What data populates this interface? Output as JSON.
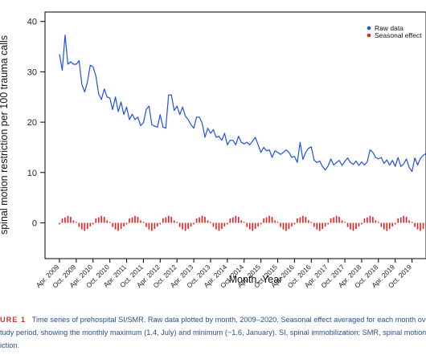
{
  "chart_data": {
    "type": "line",
    "title": "",
    "xlabel": "Month. Year",
    "ylabel": "spinal motion restriction per 100 trauma calls",
    "ylim": [
      -5,
      40
    ],
    "yticks": [
      0,
      10,
      20,
      30,
      40
    ],
    "x_tick_labels": [
      "Apr. 2009",
      "Oct. 2009",
      "Apr. 2010",
      "Oct. 2010",
      "Apr. 2011",
      "Oct. 2011",
      "Apr. 2012",
      "Oct. 2012",
      "Apr. 2013",
      "Oct. 2013",
      "Apr. 2014",
      "Oct. 2014",
      "Apr. 2015",
      "Oct. 2015",
      "Apr. 2016",
      "Oct. 2016",
      "Apr. 2017",
      "Oct. 2017",
      "Apr. 2018",
      "Oct. 2018",
      "Apr. 2019",
      "Oct. 2019"
    ],
    "start_month": "2009-04",
    "legend": {
      "position": "top-right"
    },
    "series": [
      {
        "name": "Raw data",
        "type": "line",
        "color": "#1f4fe6",
        "values": [
          33.5,
          30.3,
          37.3,
          31.5,
          32.0,
          31.5,
          31.5,
          32.2,
          27.5,
          26.0,
          28.0,
          31.3,
          31.0,
          29.2,
          25.6,
          24.5,
          26.6,
          25.0,
          24.8,
          22.5,
          25.0,
          22.1,
          24.0,
          21.5,
          23.0,
          20.5,
          21.6,
          20.5,
          21.0,
          19.3,
          19.9,
          22.5,
          23.2,
          19.5,
          19.2,
          19.0,
          21.5,
          19.0,
          18.8,
          25.4,
          25.4,
          22.3,
          23.2,
          21.5,
          23.0,
          21.2,
          20.5,
          19.5,
          18.8,
          21.0,
          21.0,
          19.8,
          17.0,
          18.8,
          17.8,
          18.5,
          17.0,
          17.2,
          16.4,
          17.8,
          15.5,
          16.4,
          16.4,
          15.5,
          17.2,
          16.0,
          15.7,
          16.0,
          15.5,
          16.2,
          17.0,
          15.5,
          14.0,
          15.0,
          14.3,
          14.5,
          13.0,
          14.3,
          14.0,
          13.6,
          14.0,
          14.5,
          14.0,
          13.0,
          13.2,
          12.0,
          16.0,
          12.6,
          14.0,
          14.8,
          15.1,
          12.5,
          12.0,
          12.3,
          11.2,
          10.5,
          11.3,
          12.7,
          11.5,
          12.0,
          12.4,
          11.4,
          12.2,
          12.9,
          12.0,
          11.6,
          12.3,
          11.4,
          12.1,
          11.5,
          12.1,
          14.5,
          14.0,
          13.0,
          12.7,
          13.0,
          11.8,
          12.5,
          11.5,
          12.4,
          11.2,
          13.0,
          11.2,
          11.7,
          12.7,
          11.0,
          10.2,
          12.9,
          11.5,
          12.8,
          13.4,
          13.8,
          14.2,
          14.5
        ]
      },
      {
        "name": "Seasonal effect",
        "type": "bar",
        "color": "#ee1c1c",
        "monthly_effect_jan_to_dec": [
          -1.6,
          -1.2,
          -0.7,
          -0.3,
          0.9,
          1.1,
          1.4,
          1.2,
          0.5,
          0.2,
          -0.8,
          -1.3
        ]
      }
    ]
  },
  "caption": {
    "label": "URE 1",
    "line1": "Time series of prehospital SI/SMR. Raw data plotted by month, 2009–2020. Seasonal effect averaged for each month ov",
    "line2": "tudy period, showing the monthly maximum (1.4, July) and minimum (−1.6, January). SI, spinal immobilization; SMR, spinal motion",
    "line3": "iction."
  }
}
